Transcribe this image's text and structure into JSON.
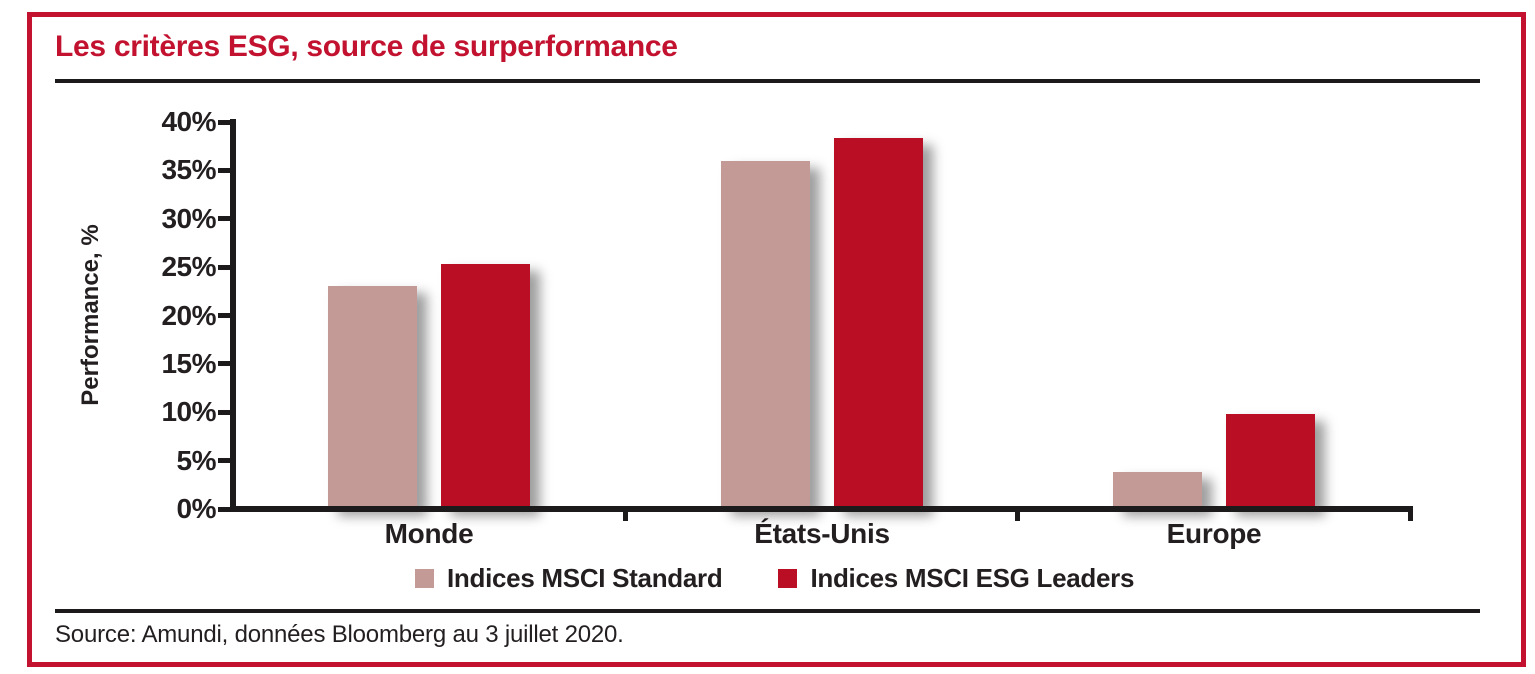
{
  "title": "Les critères ESG, source de surperformance",
  "source": "Source: Amundi, données Bloomberg au 3 juillet 2020.",
  "colors": {
    "accent_red": "#C2122F",
    "bar_standard": "#C49A97",
    "bar_esg_leaders": "#B90E24",
    "text_black": "#231F20",
    "line_black": "#1D1A1B"
  },
  "chart_data": {
    "type": "bar",
    "categories": [
      "Monde",
      "États-Unis",
      "Europe"
    ],
    "series": [
      {
        "name": "Indices MSCI Standard",
        "values": [
          23.0,
          36.0,
          3.8
        ]
      },
      {
        "name": "Indices MSCI ESG Leaders",
        "values": [
          25.3,
          38.3,
          9.8
        ]
      }
    ],
    "ylabel": "Performance, %",
    "ylim": [
      0,
      40
    ],
    "ytick_step": 5,
    "ytick_labels": [
      "0%",
      "5%",
      "10%",
      "15%",
      "20%",
      "25%",
      "30%",
      "35%",
      "40%"
    ],
    "grid": false,
    "legend_position": "bottom"
  }
}
